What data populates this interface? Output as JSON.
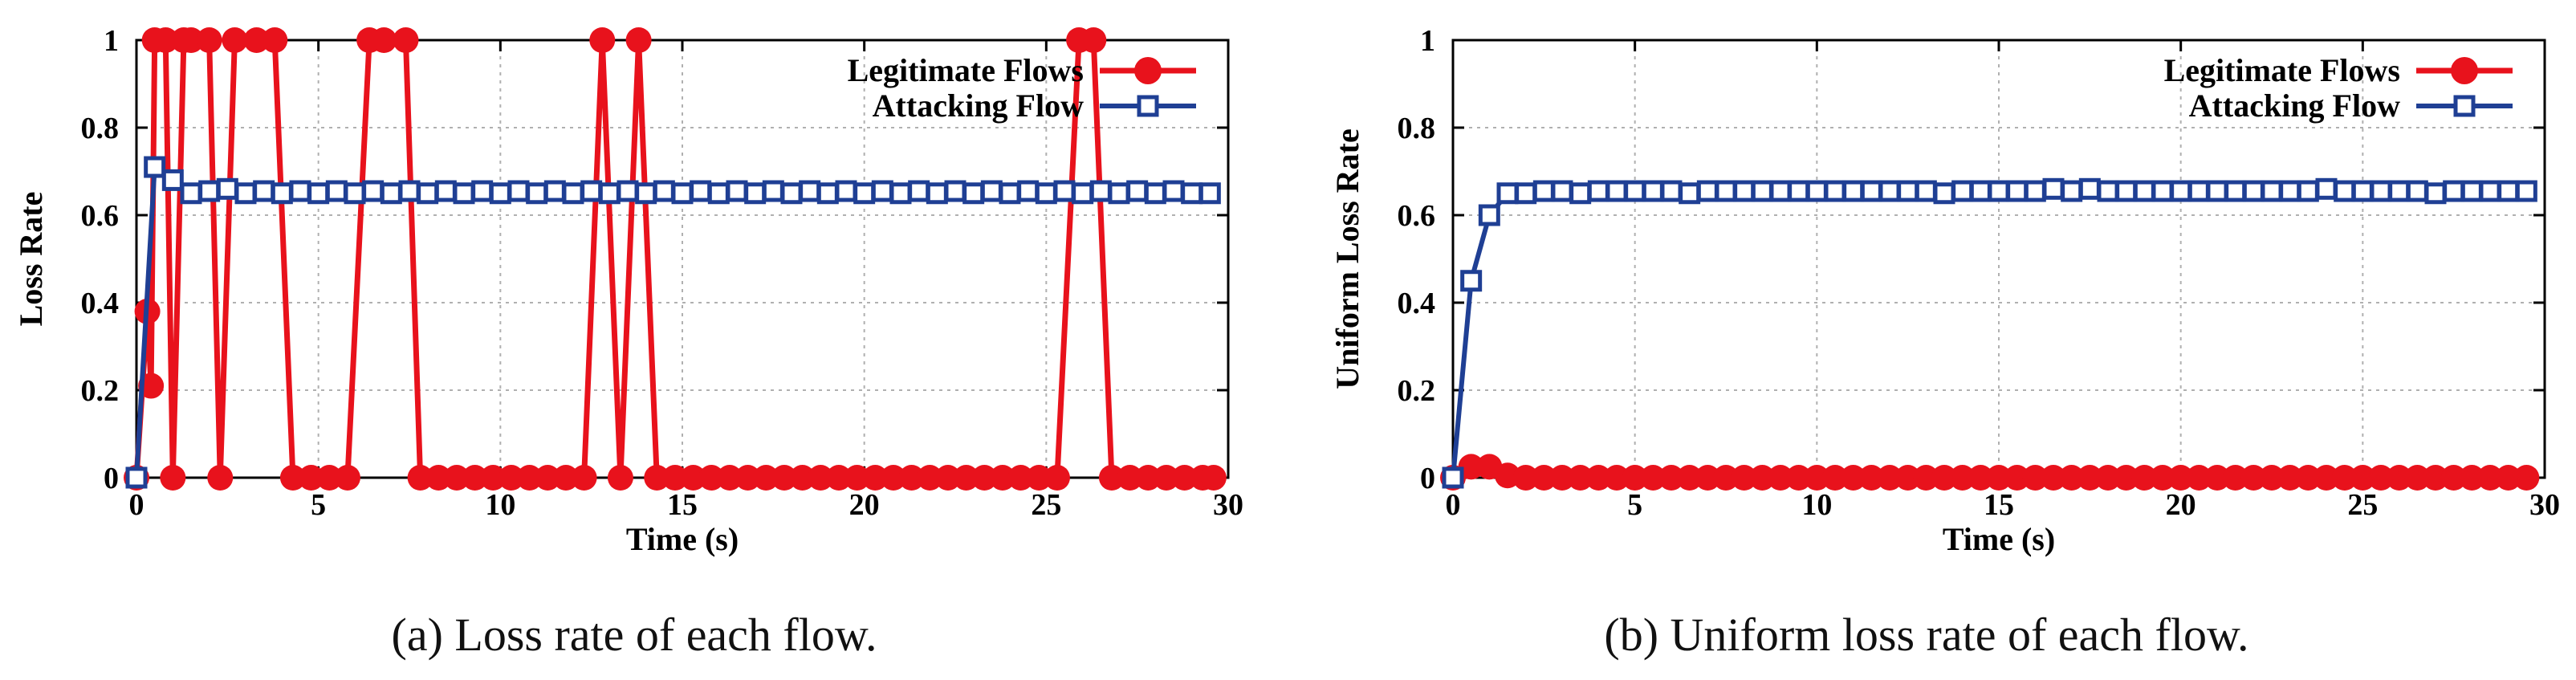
{
  "colors": {
    "legit": "#e8121c",
    "attack": "#1f3f94",
    "grid": "#b0b0b0",
    "axis": "#000000"
  },
  "icons": {
    "legit_marker": "filled-circle",
    "attack_marker": "open-square"
  },
  "chart_data": [
    {
      "type": "line",
      "caption": "(a)  Loss rate of each flow.",
      "xlabel": "Time (s)",
      "ylabel": "Loss Rate",
      "xlim": [
        0,
        30
      ],
      "ylim": [
        0,
        1
      ],
      "xticks": [
        0,
        5,
        10,
        15,
        20,
        25,
        30
      ],
      "yticks": [
        0,
        0.2,
        0.4,
        0.6,
        0.8,
        1
      ],
      "ytick_labels": [
        "0",
        "0.2",
        "0.4",
        "0.6",
        "0.8",
        "1"
      ],
      "grid": true,
      "legend_position": "top-right",
      "series": [
        {
          "name": "Legitimate Flows",
          "marker": "circle",
          "x": [
            0,
            0.3,
            0.4,
            0.5,
            0.8,
            1.0,
            1.3,
            1.5,
            2.0,
            2.3,
            2.7,
            3.3,
            3.8,
            4.3,
            4.8,
            5.3,
            5.8,
            6.4,
            6.8,
            7.4,
            7.8,
            8.3,
            8.8,
            9.3,
            9.8,
            10.3,
            10.8,
            11.3,
            11.8,
            12.3,
            12.8,
            13.3,
            13.8,
            14.3,
            14.8,
            15.3,
            15.8,
            16.3,
            16.8,
            17.3,
            17.8,
            18.3,
            18.8,
            19.3,
            19.8,
            20.3,
            20.8,
            21.3,
            21.8,
            22.3,
            22.8,
            23.3,
            23.8,
            24.3,
            24.8,
            25.3,
            25.9,
            26.3,
            26.8,
            27.3,
            27.8,
            28.3,
            28.8,
            29.3,
            29.6
          ],
          "values": [
            0,
            0.38,
            0.21,
            1,
            1,
            0,
            1,
            1,
            1,
            0,
            1,
            1,
            1,
            0,
            0,
            0,
            0,
            1,
            1,
            1,
            0,
            0,
            0,
            0,
            0,
            0,
            0,
            0,
            0,
            0,
            1,
            0,
            1,
            0,
            0,
            0,
            0,
            0,
            0,
            0,
            0,
            0,
            0,
            0,
            0,
            0,
            0,
            0,
            0,
            0,
            0,
            0,
            0,
            0,
            0,
            0,
            1,
            1,
            0,
            0,
            0,
            0,
            0,
            0,
            0
          ]
        },
        {
          "name": "Attacking Flow",
          "marker": "square",
          "x": [
            0,
            0.5,
            1.0,
            1.5,
            2.0,
            2.5,
            3.0,
            3.5,
            4.0,
            4.5,
            5.0,
            5.5,
            6.0,
            6.5,
            7.0,
            7.5,
            8.0,
            8.5,
            9.0,
            9.5,
            10.0,
            10.5,
            11.0,
            11.5,
            12.0,
            12.5,
            13.0,
            13.5,
            14.0,
            14.5,
            15.0,
            15.5,
            16.0,
            16.5,
            17.0,
            17.5,
            18.0,
            18.5,
            19.0,
            19.5,
            20.0,
            20.5,
            21.0,
            21.5,
            22.0,
            22.5,
            23.0,
            23.5,
            24.0,
            24.5,
            25.0,
            25.5,
            26.0,
            26.5,
            27.0,
            27.5,
            28.0,
            28.5,
            29.0,
            29.5
          ],
          "values": [
            0,
            0.71,
            0.68,
            0.65,
            0.655,
            0.66,
            0.65,
            0.655,
            0.65,
            0.655,
            0.65,
            0.655,
            0.65,
            0.655,
            0.65,
            0.655,
            0.65,
            0.655,
            0.65,
            0.655,
            0.65,
            0.655,
            0.65,
            0.655,
            0.65,
            0.655,
            0.65,
            0.655,
            0.65,
            0.655,
            0.65,
            0.655,
            0.65,
            0.655,
            0.65,
            0.655,
            0.65,
            0.655,
            0.65,
            0.655,
            0.65,
            0.655,
            0.65,
            0.655,
            0.65,
            0.655,
            0.65,
            0.655,
            0.65,
            0.655,
            0.65,
            0.655,
            0.65,
            0.655,
            0.65,
            0.655,
            0.65,
            0.655,
            0.65,
            0.65
          ]
        }
      ]
    },
    {
      "type": "line",
      "caption": "(b)  Uniform loss rate of each flow.",
      "xlabel": "Time (s)",
      "ylabel": "Uniform Loss Rate",
      "xlim": [
        0,
        30
      ],
      "ylim": [
        0,
        1
      ],
      "xticks": [
        0,
        5,
        10,
        15,
        20,
        25,
        30
      ],
      "yticks": [
        0,
        0.2,
        0.4,
        0.6,
        0.8,
        1
      ],
      "ytick_labels": [
        "0",
        "0.2",
        "0.4",
        "0.6",
        "0.8",
        "1"
      ],
      "grid": true,
      "legend_position": "top-right",
      "series": [
        {
          "name": "Legitimate Flows",
          "marker": "circle",
          "x": [
            0,
            0.5,
            1.0,
            1.5,
            2.0,
            2.5,
            3.0,
            3.5,
            4.0,
            4.5,
            5.0,
            5.5,
            6.0,
            6.5,
            7.0,
            7.5,
            8.0,
            8.5,
            9.0,
            9.5,
            10.0,
            10.5,
            11.0,
            11.5,
            12.0,
            12.5,
            13.0,
            13.5,
            14.0,
            14.5,
            15.0,
            15.5,
            16.0,
            16.5,
            17.0,
            17.5,
            18.0,
            18.5,
            19.0,
            19.5,
            20.0,
            20.5,
            21.0,
            21.5,
            22.0,
            22.5,
            23.0,
            23.5,
            24.0,
            24.5,
            25.0,
            25.5,
            26.0,
            26.5,
            27.0,
            27.5,
            28.0,
            28.5,
            29.0,
            29.5
          ],
          "values": [
            0,
            0.025,
            0.025,
            0.005,
            0,
            0,
            0,
            0,
            0,
            0,
            0,
            0,
            0,
            0,
            0,
            0,
            0,
            0,
            0,
            0,
            0,
            0,
            0,
            0,
            0,
            0,
            0,
            0,
            0,
            0,
            0,
            0,
            0,
            0,
            0,
            0,
            0,
            0,
            0,
            0,
            0,
            0,
            0,
            0,
            0,
            0,
            0,
            0,
            0,
            0,
            0,
            0,
            0,
            0,
            0,
            0,
            0,
            0,
            0,
            0
          ]
        },
        {
          "name": "Attacking Flow",
          "marker": "square",
          "x": [
            0,
            0.5,
            1.0,
            1.5,
            2.0,
            2.5,
            3.0,
            3.5,
            4.0,
            4.5,
            5.0,
            5.5,
            6.0,
            6.5,
            7.0,
            7.5,
            8.0,
            8.5,
            9.0,
            9.5,
            10.0,
            10.5,
            11.0,
            11.5,
            12.0,
            12.5,
            13.0,
            13.5,
            14.0,
            14.5,
            15.0,
            15.5,
            16.0,
            16.5,
            17.0,
            17.5,
            18.0,
            18.5,
            19.0,
            19.5,
            20.0,
            20.5,
            21.0,
            21.5,
            22.0,
            22.5,
            23.0,
            23.5,
            24.0,
            24.5,
            25.0,
            25.5,
            26.0,
            26.5,
            27.0,
            27.5,
            28.0,
            28.5,
            29.0,
            29.5
          ],
          "values": [
            0,
            0.45,
            0.6,
            0.65,
            0.65,
            0.655,
            0.655,
            0.65,
            0.655,
            0.655,
            0.655,
            0.655,
            0.655,
            0.65,
            0.655,
            0.655,
            0.655,
            0.655,
            0.655,
            0.655,
            0.655,
            0.655,
            0.655,
            0.655,
            0.655,
            0.655,
            0.655,
            0.65,
            0.655,
            0.655,
            0.655,
            0.655,
            0.655,
            0.66,
            0.655,
            0.66,
            0.655,
            0.655,
            0.655,
            0.655,
            0.655,
            0.655,
            0.655,
            0.655,
            0.655,
            0.655,
            0.655,
            0.655,
            0.66,
            0.655,
            0.655,
            0.655,
            0.655,
            0.655,
            0.65,
            0.655,
            0.655,
            0.655,
            0.655,
            0.655
          ]
        }
      ]
    }
  ]
}
